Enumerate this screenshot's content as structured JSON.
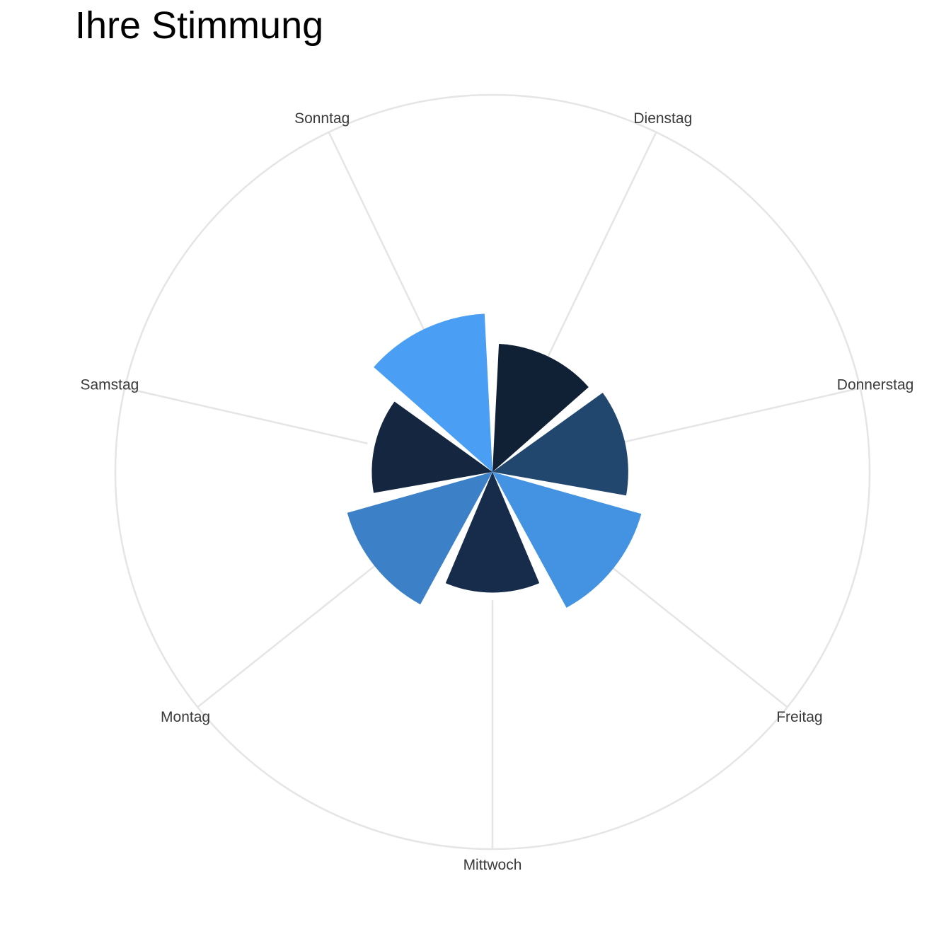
{
  "chart_data": {
    "type": "bar",
    "coord": "polar",
    "title": "Ihre Stimmung",
    "categories": [
      "Dienstag",
      "Donnerstag",
      "Freitag",
      "Mittwoch",
      "Montag",
      "Samstag",
      "Sonntag"
    ],
    "values": [
      0.34,
      0.36,
      0.41,
      0.32,
      0.4,
      0.32,
      0.42
    ],
    "colors": [
      "#112135",
      "#22476F",
      "#4393E2",
      "#172C4A",
      "#3C80C7",
      "#142640",
      "#4A9FF5"
    ],
    "rlim": [
      0,
      1
    ],
    "grid": true,
    "legend": "none"
  }
}
